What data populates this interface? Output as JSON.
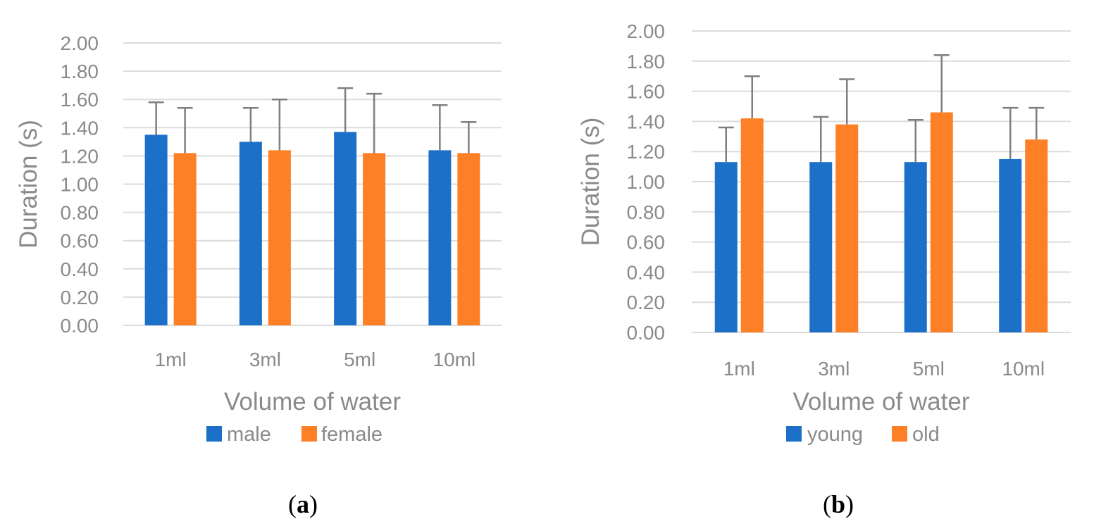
{
  "colors": {
    "series1": "#1c70c8",
    "series2": "#fd7f26",
    "grid": "#dcdcdc",
    "text": "#8a8a8a",
    "error_bar": "#7f7f7f"
  },
  "chart_data": [
    {
      "type": "bar",
      "panel_label": "a",
      "categories": [
        "1ml",
        "3ml",
        "5ml",
        "10ml"
      ],
      "series": [
        {
          "name": "male",
          "values": [
            1.35,
            1.3,
            1.37,
            1.24
          ],
          "error_upper": [
            1.58,
            1.54,
            1.68,
            1.56
          ]
        },
        {
          "name": "female",
          "values": [
            1.22,
            1.24,
            1.22,
            1.22
          ],
          "error_upper": [
            1.54,
            1.6,
            1.64,
            1.44
          ]
        }
      ],
      "yticks": [
        "0.00",
        "0.20",
        "0.40",
        "0.60",
        "0.80",
        "1.00",
        "1.20",
        "1.40",
        "1.60",
        "1.80",
        "2.00"
      ],
      "xlabel": "Volume of water",
      "ylabel": "Duration (s)",
      "ylim": [
        0,
        2
      ],
      "grid": true,
      "legend": "bottom"
    },
    {
      "type": "bar",
      "panel_label": "b",
      "categories": [
        "1ml",
        "3ml",
        "5ml",
        "10ml"
      ],
      "series": [
        {
          "name": "young",
          "values": [
            1.13,
            1.13,
            1.13,
            1.15
          ],
          "error_upper": [
            1.36,
            1.43,
            1.41,
            1.49
          ]
        },
        {
          "name": "old",
          "values": [
            1.42,
            1.38,
            1.46,
            1.28
          ],
          "error_upper": [
            1.7,
            1.68,
            1.84,
            1.49
          ]
        }
      ],
      "yticks": [
        "0.00",
        "0.20",
        "0.40",
        "0.60",
        "0.80",
        "1.00",
        "1.20",
        "1.40",
        "1.60",
        "1.80",
        "2.00"
      ],
      "xlabel": "Volume of water",
      "ylabel": "Duration (s)",
      "ylim": [
        0,
        2
      ],
      "grid": true,
      "legend": "bottom"
    }
  ]
}
